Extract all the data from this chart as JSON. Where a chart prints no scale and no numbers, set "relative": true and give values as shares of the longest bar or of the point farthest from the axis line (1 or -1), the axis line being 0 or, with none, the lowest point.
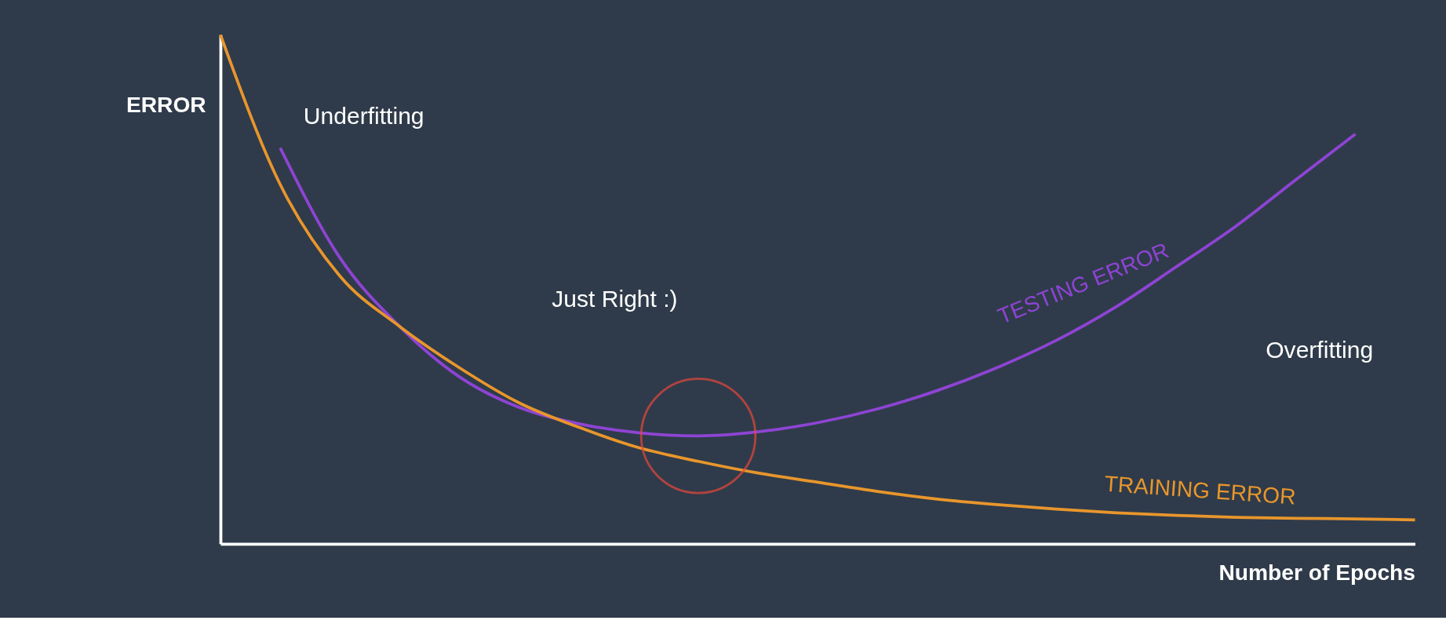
{
  "chart_data": {
    "type": "line",
    "relative": true,
    "xlabel": "Number of Epochs",
    "ylabel": "ERROR",
    "categories": [
      null,
      null,
      null,
      null,
      null,
      null,
      null,
      null,
      null,
      null,
      null,
      null,
      null,
      null,
      null,
      null,
      null,
      null,
      null,
      null,
      null
    ],
    "series": [
      {
        "name": "TESTING ERROR",
        "color": "#8e44d4",
        "values": [
          null,
          0.778,
          0.562,
          0.427,
          0.328,
          0.268,
          0.236,
          0.218,
          0.212,
          0.22,
          0.238,
          0.265,
          0.301,
          0.346,
          0.4,
          0.466,
          0.544,
          0.624,
          0.715,
          0.805,
          null
        ]
      },
      {
        "name": "TRAINING ERROR",
        "color": "#e8962c",
        "values": [
          1.0,
          0.706,
          0.526,
          0.427,
          0.346,
          0.277,
          0.229,
          0.189,
          0.162,
          0.139,
          0.121,
          0.103,
          0.088,
          0.077,
          0.068,
          0.061,
          0.056,
          0.052,
          0.05,
          0.049,
          0.047
        ]
      }
    ],
    "annotations": [
      "Underfitting",
      "Just Right :)",
      "Overfitting"
    ],
    "tick_labels": false,
    "grid": false,
    "marker": "none",
    "line_style": "solid"
  }
}
